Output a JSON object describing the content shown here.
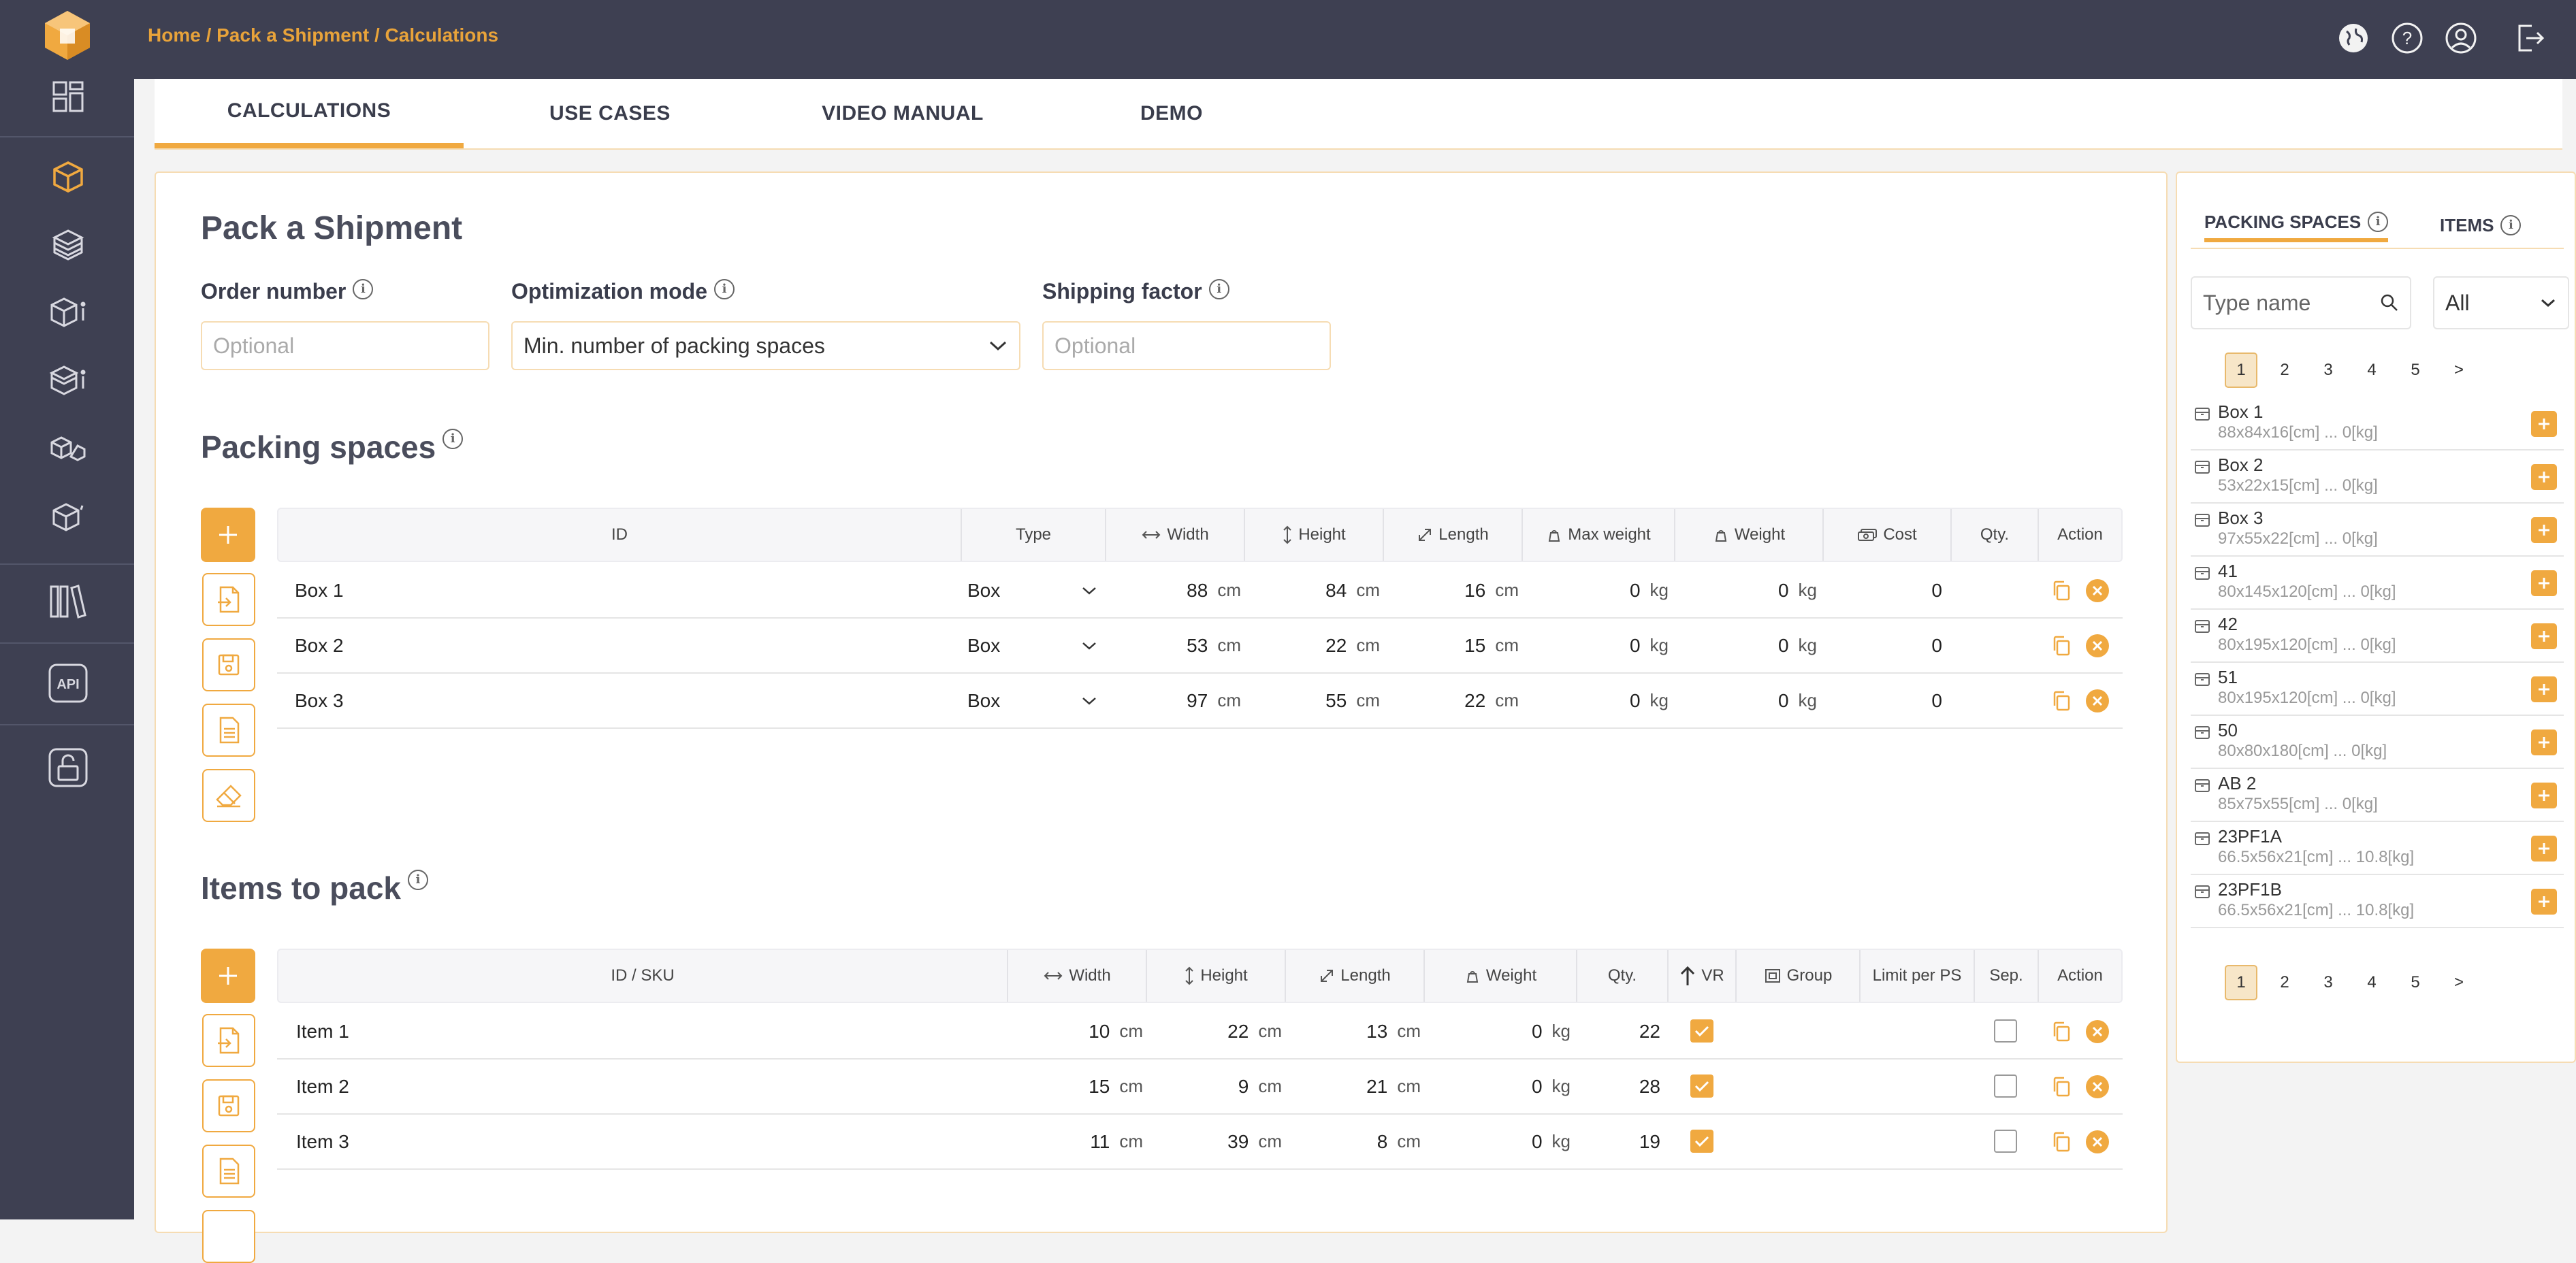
{
  "breadcrumb": "Home / Pack a Shipment / Calculations",
  "tabs": [
    "CALCULATIONS",
    "USE CASES",
    "VIDEO MANUAL",
    "DEMO"
  ],
  "page_title": "Pack a Shipment",
  "form": {
    "order_number_label": "Order number",
    "order_number_placeholder": "Optional",
    "optimization_label": "Optimization mode",
    "optimization_value": "Min. number of packing spaces",
    "shipping_factor_label": "Shipping factor",
    "shipping_factor_placeholder": "Optional"
  },
  "packing_spaces": {
    "title": "Packing spaces",
    "headers": [
      "ID",
      "Type",
      "Width",
      "Height",
      "Length",
      "Max weight",
      "Weight",
      "Cost",
      "Qty.",
      "Action"
    ],
    "unit_cm": "cm",
    "unit_kg": "kg",
    "rows": [
      {
        "id": "Box 1",
        "type": "Box",
        "width": "88",
        "height": "84",
        "length": "16",
        "max_weight": "0",
        "weight": "0",
        "cost": "0"
      },
      {
        "id": "Box 2",
        "type": "Box",
        "width": "53",
        "height": "22",
        "length": "15",
        "max_weight": "0",
        "weight": "0",
        "cost": "0"
      },
      {
        "id": "Box 3",
        "type": "Box",
        "width": "97",
        "height": "55",
        "length": "22",
        "max_weight": "0",
        "weight": "0",
        "cost": "0"
      }
    ]
  },
  "items": {
    "title": "Items to pack",
    "headers": [
      "ID / SKU",
      "Width",
      "Height",
      "Length",
      "Weight",
      "Qty.",
      "VR",
      "Group",
      "Limit per PS",
      "Sep.",
      "Action"
    ],
    "rows": [
      {
        "id": "Item 1",
        "width": "10",
        "height": "22",
        "length": "13",
        "weight": "0",
        "qty": "22",
        "vr": true,
        "sep": false
      },
      {
        "id": "Item 2",
        "width": "15",
        "height": "9",
        "length": "21",
        "weight": "0",
        "qty": "28",
        "vr": true,
        "sep": false
      },
      {
        "id": "Item 3",
        "width": "11",
        "height": "39",
        "length": "8",
        "weight": "0",
        "qty": "19",
        "vr": true,
        "sep": false
      }
    ]
  },
  "right_panel": {
    "tab_spaces": "PACKING SPACES",
    "tab_items": "ITEMS",
    "search_placeholder": "Type name",
    "filter_value": "All",
    "pages": [
      "1",
      "2",
      "3",
      "4",
      "5",
      ">"
    ],
    "list": [
      {
        "name": "Box 1",
        "dims": "88x84x16[cm] ... 0[kg]"
      },
      {
        "name": "Box 2",
        "dims": "53x22x15[cm] ... 0[kg]"
      },
      {
        "name": "Box 3",
        "dims": "97x55x22[cm] ... 0[kg]"
      },
      {
        "name": "41",
        "dims": "80x145x120[cm] ... 0[kg]"
      },
      {
        "name": "42",
        "dims": "80x195x120[cm] ... 0[kg]"
      },
      {
        "name": "51",
        "dims": "80x195x120[cm] ... 0[kg]"
      },
      {
        "name": "50",
        "dims": "80x80x180[cm] ... 0[kg]"
      },
      {
        "name": "AB 2",
        "dims": "85x75x55[cm] ... 0[kg]"
      },
      {
        "name": "23PF1A",
        "dims": "66.5x56x21[cm] ... 10.8[kg]"
      },
      {
        "name": "23PF1B",
        "dims": "66.5x56x21[cm] ... 10.8[kg]"
      }
    ]
  },
  "colors": {
    "accent": "#f0a940",
    "sidebar": "#3e4052"
  }
}
